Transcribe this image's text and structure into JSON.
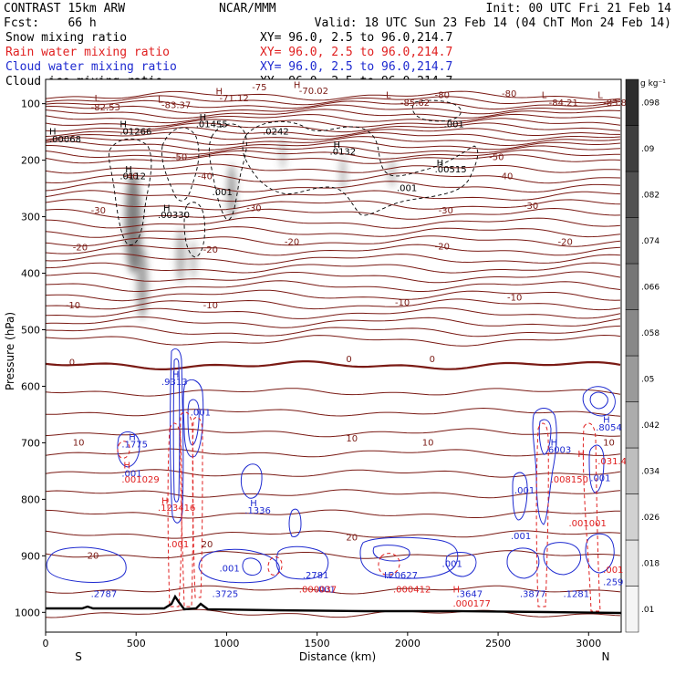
{
  "header": {
    "left1": "CONTRAST 15km ARW",
    "left2": "Fcst:    66 h",
    "center": "NCAR/MMM",
    "init": "Init: 00 UTC Fri 21 Feb 14",
    "valid": "Valid: 18 UTC Sun 23 Feb 14 (04 ChT Mon 24 Feb 14)"
  },
  "colors": {
    "temp": "#7a1a14",
    "rain": "#e02020",
    "cloud_water": "#1e2ad0",
    "cloud_ice": "#000000",
    "snow_shade": "#707070"
  },
  "chart_data": {
    "type": "cross-section",
    "fields": [
      {
        "name": "Snow mixing ratio",
        "color": "#000000",
        "xy": "XY=  96.0,  2.5 to  96.0,214.7"
      },
      {
        "name": "Rain water mixing ratio",
        "color": "#e02020",
        "xy": "XY=  96.0,  2.5 to  96.0,214.7"
      },
      {
        "name": "Cloud water mixing ratio",
        "color": "#1e2ad0",
        "xy": "XY=  96.0,  2.5 to  96.0,214.7"
      },
      {
        "name": "Cloud ice mixing ratio",
        "color": "#000000",
        "xy": "XY=  96.0,  2.5 to  96.0,214.7"
      }
    ],
    "xlabel": "Distance (km)",
    "ylabel": "Pressure (hPa)",
    "xlim": [
      0,
      3180
    ],
    "ylim": [
      1035,
      57
    ],
    "x_ticks": [
      "0",
      "500",
      "1000",
      "1500",
      "2000",
      "2500",
      "3000"
    ],
    "y_ticks": [
      "100",
      "200",
      "300",
      "400",
      "500",
      "600",
      "700",
      "800",
      "900",
      "1000"
    ],
    "x_end_labels": {
      "left": "S",
      "right": "N"
    },
    "colorbar": {
      "unit": "g kg⁻¹",
      "labels": [
        ".01",
        ".018",
        ".026",
        ".034",
        ".042",
        ".05",
        ".058",
        ".066",
        ".074",
        ".082",
        ".09",
        ".098"
      ]
    },
    "temperature_isotherms": [
      {
        "label": "-80",
        "p": 105
      },
      {
        "label": "-70",
        "p": 112
      },
      {
        "label": "-60",
        "p": 130
      },
      {
        "label": "-50",
        "p": 200
      },
      {
        "label": "-40",
        "p": 235
      },
      {
        "label": "-30",
        "p": 290
      },
      {
        "label": "-20",
        "p": 360
      },
      {
        "label": "-10",
        "p": 462
      },
      {
        "label": "0",
        "p": 563
      },
      {
        "label": "10",
        "p": 705
      },
      {
        "label": "20",
        "p": 880
      }
    ],
    "temperature_labels": [
      {
        "text": "-85",
        "x": -50,
        "p": 108
      },
      {
        "text": "-82.53",
        "x": 250,
        "p": 112
      },
      {
        "text": "L",
        "x": 270,
        "p": 96
      },
      {
        "text": "L",
        "x": 620,
        "p": 98
      },
      {
        "text": "-83.37",
        "x": 640,
        "p": 108
      },
      {
        "text": "H",
        "x": 940,
        "p": 84
      },
      {
        "text": "-71.12",
        "x": 960,
        "p": 96
      },
      {
        "text": "H",
        "x": 1370,
        "p": 72
      },
      {
        "text": "-70.02",
        "x": 1400,
        "p": 83
      },
      {
        "text": "-75",
        "x": 1140,
        "p": 76
      },
      {
        "text": "-80",
        "x": 2150,
        "p": 90
      },
      {
        "text": "L",
        "x": 1880,
        "p": 90
      },
      {
        "text": "-85.62",
        "x": 1960,
        "p": 104
      },
      {
        "text": "-80",
        "x": 2520,
        "p": 88
      },
      {
        "text": "L",
        "x": 2740,
        "p": 90
      },
      {
        "text": "-84.21",
        "x": 2780,
        "p": 104
      },
      {
        "text": "L",
        "x": 3050,
        "p": 90
      },
      {
        "text": "-83.8",
        "x": 3080,
        "p": 104
      },
      {
        "text": "-50",
        "x": 700,
        "p": 200
      },
      {
        "text": "-50",
        "x": 2450,
        "p": 200
      },
      {
        "text": "-40",
        "x": 430,
        "p": 234
      },
      {
        "text": "-40",
        "x": 840,
        "p": 234
      },
      {
        "text": "-40",
        "x": 2500,
        "p": 234
      },
      {
        "text": "-30",
        "x": 250,
        "p": 294
      },
      {
        "text": "-30",
        "x": 1110,
        "p": 290
      },
      {
        "text": "-30",
        "x": 2170,
        "p": 294
      },
      {
        "text": "-30",
        "x": 2640,
        "p": 286
      },
      {
        "text": "-20",
        "x": 150,
        "p": 360
      },
      {
        "text": "-20",
        "x": 870,
        "p": 364
      },
      {
        "text": "-20",
        "x": 1320,
        "p": 350
      },
      {
        "text": "-20",
        "x": 2150,
        "p": 358
      },
      {
        "text": "-20",
        "x": 2830,
        "p": 350
      },
      {
        "text": "-10",
        "x": 110,
        "p": 462
      },
      {
        "text": "-10",
        "x": 870,
        "p": 462
      },
      {
        "text": "-10",
        "x": 1930,
        "p": 457
      },
      {
        "text": "-10",
        "x": 2550,
        "p": 448
      },
      {
        "text": "0",
        "x": 130,
        "p": 563
      },
      {
        "text": "0",
        "x": 1660,
        "p": 557
      },
      {
        "text": "0",
        "x": 2120,
        "p": 557
      },
      {
        "text": "10",
        "x": 150,
        "p": 705
      },
      {
        "text": "10",
        "x": 1660,
        "p": 698
      },
      {
        "text": "10",
        "x": 2080,
        "p": 705
      },
      {
        "text": "10",
        "x": 3080,
        "p": 705
      },
      {
        "text": "20",
        "x": 230,
        "p": 905
      },
      {
        "text": "20",
        "x": 860,
        "p": 885
      },
      {
        "text": "20",
        "x": 1660,
        "p": 873
      }
    ],
    "cloud_ice_labels": [
      {
        "text": "H",
        "x": 20,
        "p": 155
      },
      {
        "text": ".00068",
        "x": 20,
        "p": 168
      },
      {
        "text": "H",
        "x": 410,
        "p": 142
      },
      {
        "text": ".01266",
        "x": 410,
        "p": 155
      },
      {
        "text": "H",
        "x": 850,
        "p": 130
      },
      {
        "text": ".01455",
        "x": 830,
        "p": 142
      },
      {
        "text": ".0242",
        "x": 1200,
        "p": 155
      },
      {
        "text": ".001",
        "x": 2200,
        "p": 142
      },
      {
        "text": "H",
        "x": 1590,
        "p": 178
      },
      {
        "text": ".0132",
        "x": 1570,
        "p": 190
      },
      {
        "text": "H",
        "x": 2160,
        "p": 210
      },
      {
        "text": ".00515",
        "x": 2150,
        "p": 222
      },
      {
        "text": "H",
        "x": 440,
        "p": 222
      },
      {
        "text": ".0112",
        "x": 410,
        "p": 234
      },
      {
        "text": ".001",
        "x": 920,
        "p": 262
      },
      {
        "text": ".001",
        "x": 1940,
        "p": 255
      },
      {
        "text": "H",
        "x": 650,
        "p": 290
      },
      {
        "text": ".00330",
        "x": 620,
        "p": 302
      }
    ],
    "cloud_water_labels": [
      {
        "text": "H",
        "x": 700,
        "p": 585
      },
      {
        "text": ".9313",
        "x": 640,
        "p": 598
      },
      {
        "text": ".001",
        "x": 800,
        "p": 652
      },
      {
        "text": "H",
        "x": 460,
        "p": 695
      },
      {
        "text": ".1775",
        "x": 420,
        "p": 708
      },
      {
        "text": ".001",
        "x": 420,
        "p": 760
      },
      {
        "text": "H",
        "x": 1130,
        "p": 812
      },
      {
        "text": ".1336",
        "x": 1100,
        "p": 825
      },
      {
        "text": "H",
        "x": 2790,
        "p": 705
      },
      {
        "text": ".6003",
        "x": 2760,
        "p": 718
      },
      {
        "text": "H",
        "x": 3080,
        "p": 665
      },
      {
        "text": ".8054",
        "x": 3040,
        "p": 678
      },
      {
        "text": ".001",
        "x": 2590,
        "p": 790
      },
      {
        "text": ".001",
        "x": 2570,
        "p": 870
      },
      {
        "text": ".001",
        "x": 3010,
        "p": 768
      },
      {
        "text": ".001",
        "x": 2190,
        "p": 920
      },
      {
        "text": ".001",
        "x": 960,
        "p": 928
      },
      {
        "text": ".2787",
        "x": 250,
        "p": 973
      },
      {
        "text": ".3725",
        "x": 920,
        "p": 973
      },
      {
        "text": ".2781",
        "x": 1420,
        "p": 940
      },
      {
        "text": ".001",
        "x": 1490,
        "p": 965
      },
      {
        "text": "H",
        "x": 1870,
        "p": 940
      },
      {
        "text": ".20627",
        "x": 1880,
        "p": 940
      },
      {
        "text": ".3647",
        "x": 2270,
        "p": 973
      },
      {
        "text": ".3877",
        "x": 2620,
        "p": 973
      },
      {
        "text": ".1281",
        "x": 2860,
        "p": 973
      },
      {
        "text": ".259",
        "x": 3080,
        "p": 952
      }
    ],
    "rain_labels": [
      {
        "text": "H",
        "x": 430,
        "p": 745
      },
      {
        "text": ".001029",
        "x": 420,
        "p": 770
      },
      {
        "text": "H",
        "x": 640,
        "p": 808
      },
      {
        "text": ".123416",
        "x": 620,
        "p": 820
      },
      {
        "text": ".001",
        "x": 680,
        "p": 885
      },
      {
        "text": ".008150",
        "x": 2790,
        "p": 770
      },
      {
        "text": "H",
        "x": 2940,
        "p": 725
      },
      {
        "text": ".031.42",
        "x": 3050,
        "p": 738
      },
      {
        "text": ".001001",
        "x": 2890,
        "p": 848
      },
      {
        "text": ".000037",
        "x": 1400,
        "p": 965
      },
      {
        "text": ".000412",
        "x": 1920,
        "p": 965
      },
      {
        "text": "H",
        "x": 2250,
        "p": 965
      },
      {
        "text": ".000177",
        "x": 2250,
        "p": 990
      },
      {
        "text": ".001",
        "x": 3080,
        "p": 930
      }
    ]
  }
}
